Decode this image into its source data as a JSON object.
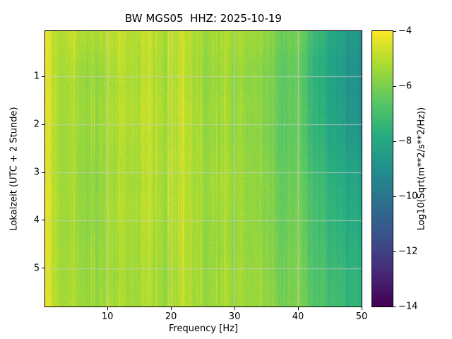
{
  "chart_data": {
    "type": "heatmap",
    "title": "BW MGS05  HHZ: 2025-10-19",
    "xlabel": "Frequency [Hz]",
    "ylabel": "Lokalzeit (UTC + 2 Stunde)",
    "x_range": [
      0.2,
      50
    ],
    "y_range": [
      0.05,
      5.8
    ],
    "y_direction": "down",
    "x_ticks": [
      10,
      20,
      30,
      40,
      50
    ],
    "y_ticks": [
      1,
      2,
      3,
      4,
      5
    ],
    "grid_on": true,
    "grid_color": "#cdcdcd",
    "colormap": "viridis",
    "value_range": [
      -14,
      -4
    ],
    "colormap_stops": [
      [
        0.0,
        68,
        1,
        84
      ],
      [
        0.13,
        71,
        44,
        122
      ],
      [
        0.25,
        59,
        81,
        139
      ],
      [
        0.38,
        44,
        113,
        142
      ],
      [
        0.5,
        33,
        144,
        141
      ],
      [
        0.62,
        39,
        173,
        129
      ],
      [
        0.75,
        92,
        200,
        99
      ],
      [
        0.88,
        170,
        220,
        50
      ],
      [
        1.0,
        253,
        231,
        37
      ]
    ],
    "colorbar": {
      "label": "Log10(Sqrt(m**2/s**2/Hz))",
      "ticks": [
        -4,
        -6,
        -8,
        -10,
        -12,
        -14
      ]
    },
    "grid_freqs": [
      0.3,
      1.3,
      4,
      8,
      12,
      16,
      20,
      24,
      28,
      32,
      36,
      40,
      43,
      46,
      50
    ],
    "grid_times": [
      0.2,
      0.7,
      1.2,
      1.7,
      2.2,
      2.7,
      3.2,
      3.7,
      4.2,
      4.7,
      5.2,
      5.8
    ],
    "values": [
      [
        -4.2,
        -4.7,
        -5.1,
        -5.2,
        -5.0,
        -4.9,
        -5.0,
        -5.2,
        -5.3,
        -5.4,
        -5.7,
        -6.2,
        -7.2,
        -8.2,
        -9.0
      ],
      [
        -4.2,
        -4.8,
        -5.3,
        -5.5,
        -5.1,
        -5.0,
        -5.1,
        -5.3,
        -5.4,
        -5.6,
        -5.9,
        -6.4,
        -7.5,
        -8.4,
        -9.2
      ],
      [
        -4.3,
        -4.8,
        -5.4,
        -5.6,
        -5.2,
        -5.0,
        -5.1,
        -5.3,
        -5.5,
        -5.7,
        -5.9,
        -6.5,
        -7.5,
        -8.4,
        -9.2
      ],
      [
        -4.2,
        -4.7,
        -5.4,
        -5.5,
        -5.1,
        -4.9,
        -5.0,
        -5.2,
        -5.4,
        -5.6,
        -5.9,
        -6.4,
        -7.4,
        -8.3,
        -9.1
      ],
      [
        -4.3,
        -4.8,
        -5.5,
        -5.6,
        -5.2,
        -5.0,
        -5.1,
        -5.3,
        -5.5,
        -5.7,
        -6.0,
        -6.5,
        -7.4,
        -8.2,
        -9.0
      ],
      [
        -4.2,
        -4.8,
        -5.5,
        -5.6,
        -5.3,
        -5.0,
        -5.0,
        -5.2,
        -5.4,
        -5.6,
        -5.9,
        -6.4,
        -7.2,
        -8.0,
        -8.6
      ],
      [
        -4.3,
        -4.8,
        -5.5,
        -5.7,
        -5.3,
        -5.1,
        -5.1,
        -5.3,
        -5.3,
        -5.6,
        -5.8,
        -6.3,
        -7.0,
        -7.8,
        -8.4
      ],
      [
        -4.2,
        -4.7,
        -5.5,
        -5.6,
        -5.2,
        -5.0,
        -5.1,
        -5.2,
        -5.4,
        -5.6,
        -5.8,
        -6.2,
        -6.9,
        -7.7,
        -8.2
      ],
      [
        -4.3,
        -4.8,
        -5.6,
        -5.7,
        -5.3,
        -5.1,
        -5.2,
        -5.3,
        -5.5,
        -5.6,
        -5.8,
        -6.2,
        -6.9,
        -7.6,
        -8.1
      ],
      [
        -4.2,
        -4.8,
        -5.5,
        -5.6,
        -5.3,
        -5.2,
        -5.2,
        -5.3,
        -5.5,
        -5.6,
        -5.7,
        -6.1,
        -6.8,
        -7.5,
        -7.9
      ],
      [
        -4.3,
        -4.8,
        -5.5,
        -5.6,
        -5.4,
        -5.2,
        -5.3,
        -5.3,
        -5.4,
        -5.5,
        -5.7,
        -6.1,
        -6.7,
        -7.3,
        -7.8
      ],
      [
        -4.2,
        -4.7,
        -5.4,
        -5.5,
        -5.3,
        -5.2,
        -5.2,
        -5.3,
        -5.4,
        -5.5,
        -5.6,
        -6.0,
        -6.6,
        -7.2,
        -7.7
      ]
    ]
  }
}
